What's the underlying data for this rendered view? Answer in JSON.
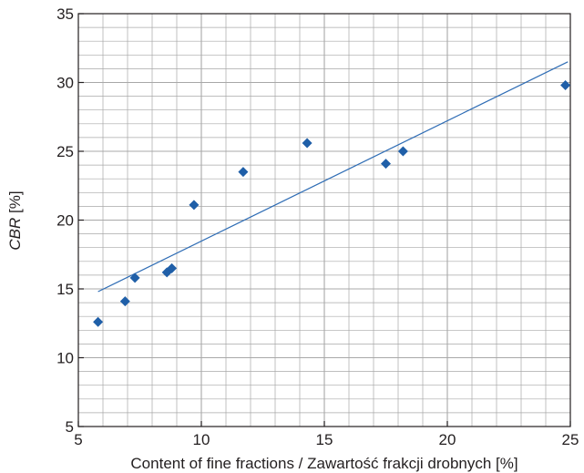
{
  "chart_data": {
    "type": "scatter",
    "xlabel": "Content of fine fractions / Zawartość frakcji drobnych [%]",
    "ylabel": {
      "italic": "CBR",
      "rest": " [%]"
    },
    "xlim": [
      5,
      25
    ],
    "ylim": [
      5,
      35
    ],
    "x_ticks": [
      "5",
      "10",
      "15",
      "20",
      "25"
    ],
    "y_ticks": [
      "5",
      "10",
      "15",
      "20",
      "25",
      "30",
      "35"
    ],
    "grid": true,
    "legend": "none",
    "series": [
      {
        "marker": "diamond",
        "color": "#1f5fa8",
        "points": [
          {
            "x": 5.8,
            "y": 12.6
          },
          {
            "x": 6.9,
            "y": 14.1
          },
          {
            "x": 7.3,
            "y": 15.8
          },
          {
            "x": 8.6,
            "y": 16.2
          },
          {
            "x": 8.8,
            "y": 16.5
          },
          {
            "x": 9.7,
            "y": 21.1
          },
          {
            "x": 11.7,
            "y": 23.5
          },
          {
            "x": 14.3,
            "y": 25.6
          },
          {
            "x": 17.5,
            "y": 24.1
          },
          {
            "x": 18.2,
            "y": 25.0
          },
          {
            "x": 24.8,
            "y": 29.8
          }
        ]
      }
    ],
    "trendline": {
      "color": "#2f6db5",
      "points": [
        {
          "x": 5.8,
          "y": 14.8
        },
        {
          "x": 24.9,
          "y": 31.5
        }
      ]
    },
    "colors": {
      "grid": "#a8a8a8",
      "frame": "#231f20",
      "marker": "#1f5fa8",
      "line": "#2f6db5"
    }
  }
}
